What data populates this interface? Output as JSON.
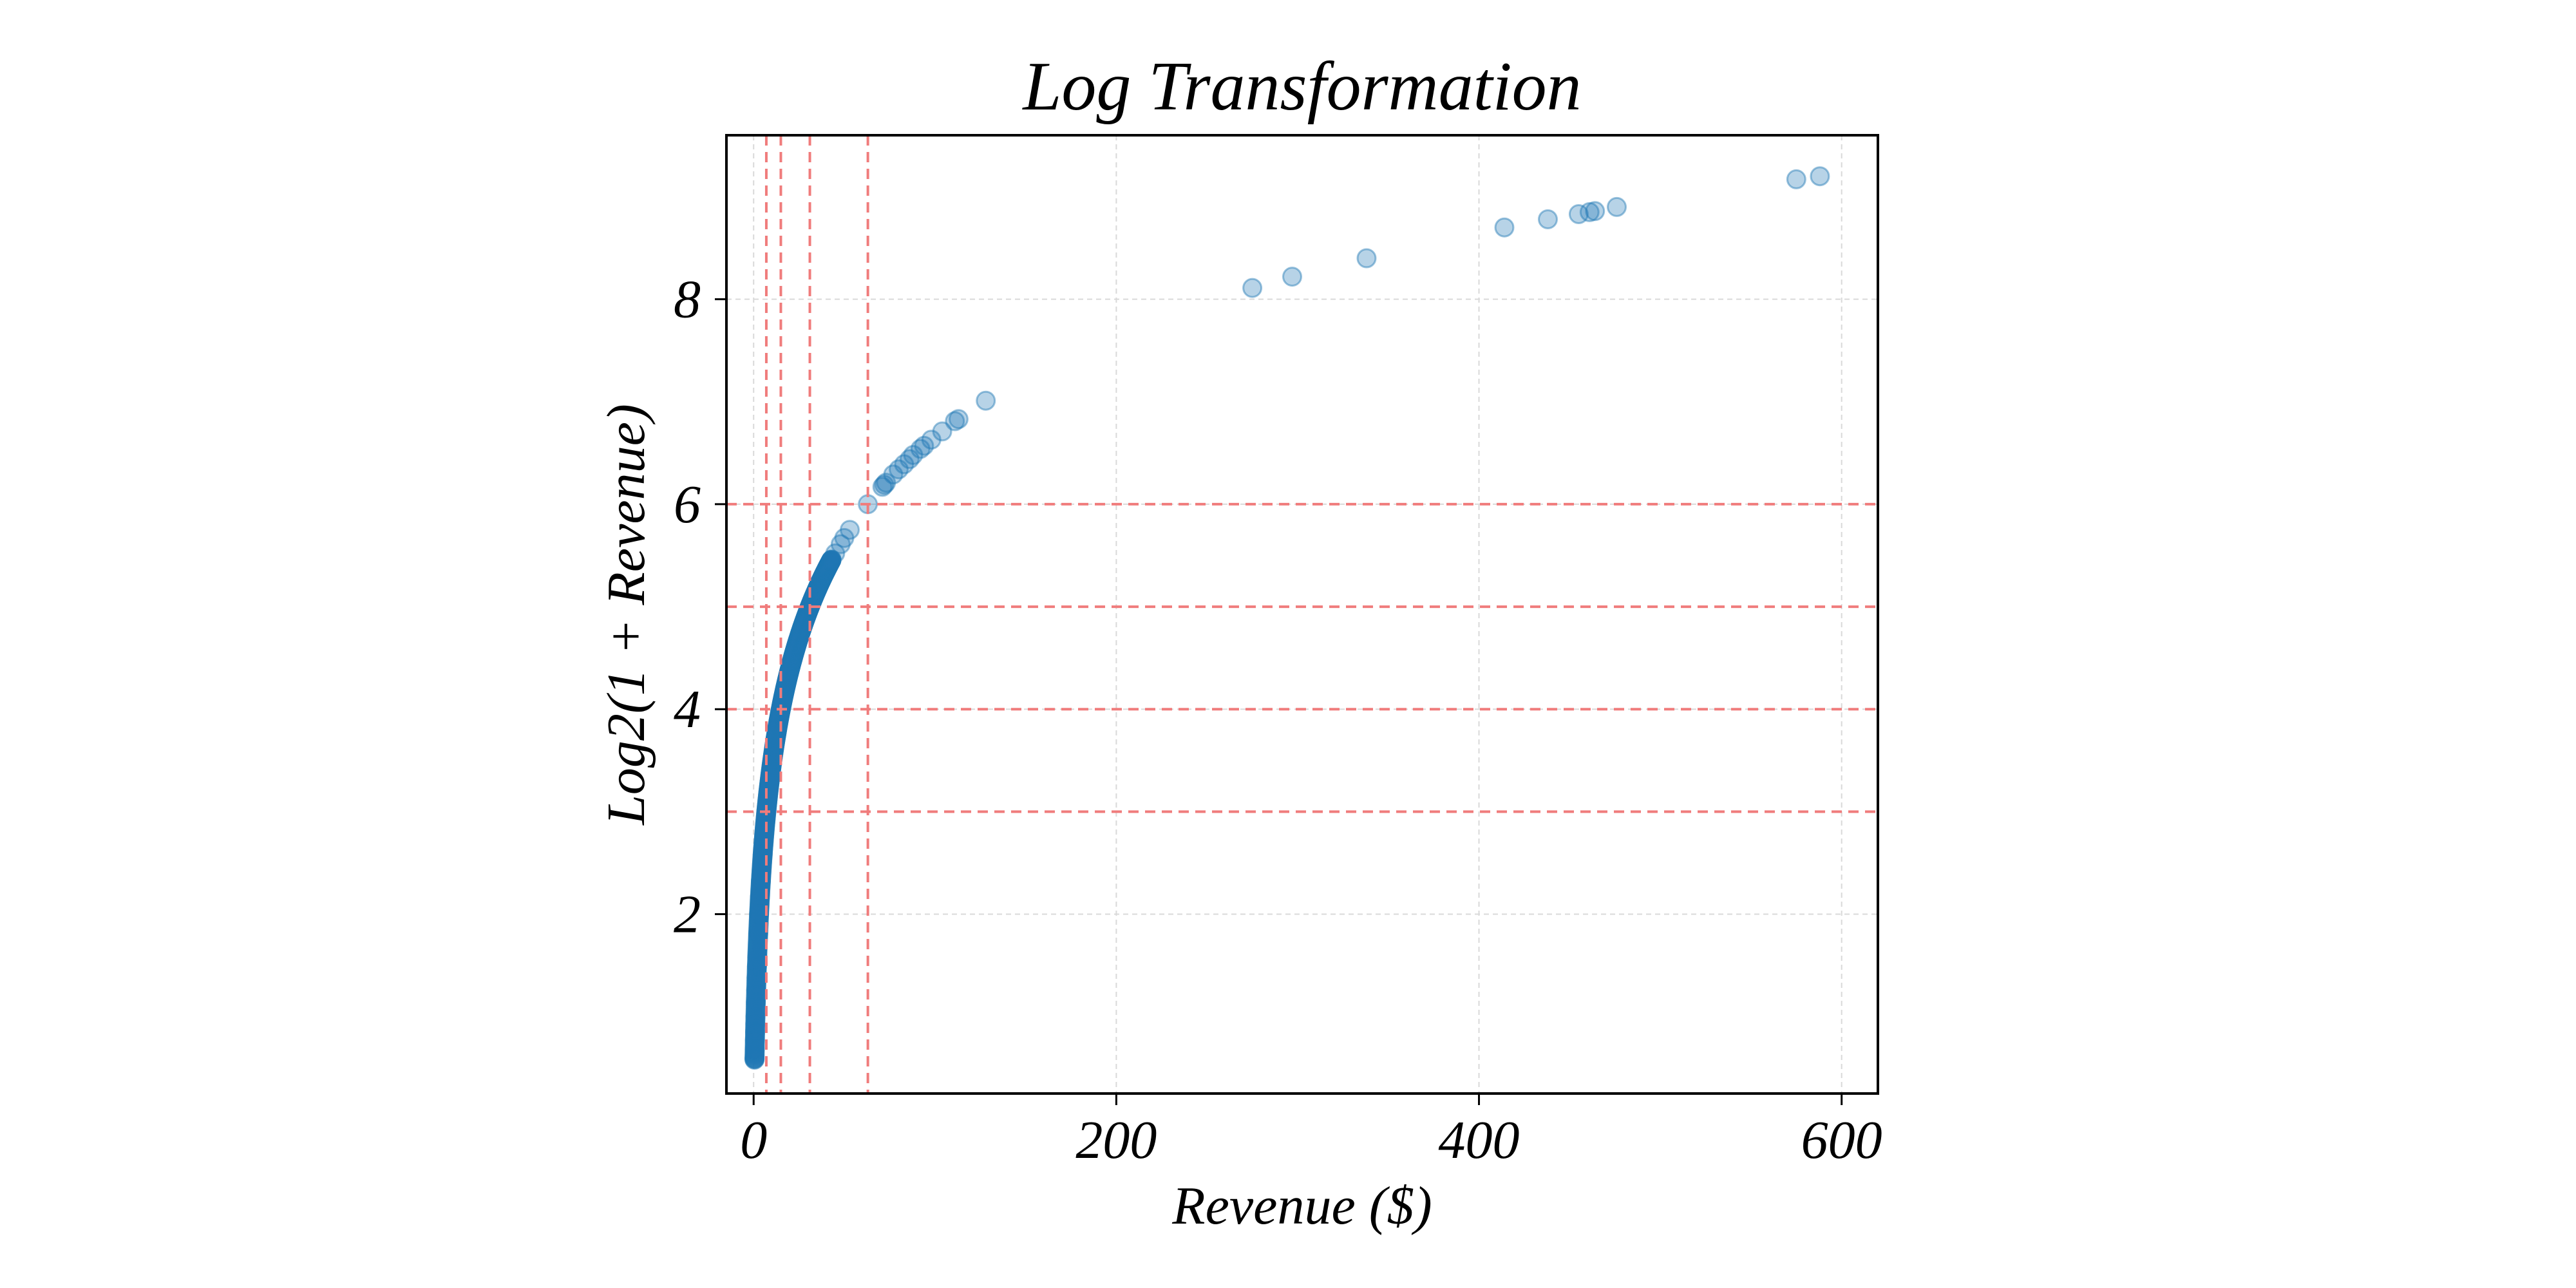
{
  "chart_data": {
    "type": "scatter",
    "title": "Log Transformation",
    "xlabel": "Revenue ($)",
    "ylabel": "Log2(1 + Revenue)",
    "xlim": [
      -15,
      620
    ],
    "ylim": [
      0.25,
      9.6
    ],
    "xticks": [
      0,
      200,
      400,
      600
    ],
    "yticks": [
      2,
      4,
      6,
      8
    ],
    "grid": true,
    "colors": {
      "points": "#1f77b4",
      "reference_lines": "#f07c7c",
      "grid": "#d9d9d9"
    },
    "reference_lines": {
      "vertical_x": [
        7,
        15,
        31,
        63
      ],
      "horizontal_y": [
        3,
        4,
        5,
        6
      ]
    },
    "y_function": "log2(1 + x)",
    "dense_curve": {
      "x_from": 0.5,
      "x_to": 43
    },
    "series": [
      {
        "x": [
          0.5,
          0.6,
          0.7,
          0.8,
          0.9,
          1.0,
          1.2,
          1.4,
          1.6,
          1.8,
          2.0,
          2.5,
          3.0,
          3.5,
          4.0,
          5.0,
          45,
          48,
          50,
          53,
          63,
          71,
          72,
          73,
          77,
          80,
          83,
          86,
          88,
          92,
          94,
          98,
          104,
          111,
          113,
          128,
          275,
          297,
          338,
          414,
          438,
          455,
          461,
          464,
          476,
          575,
          588
        ],
        "y": [
          0.58,
          0.68,
          0.77,
          0.85,
          0.93,
          1.0,
          1.14,
          1.26,
          1.38,
          1.49,
          1.58,
          1.81,
          2.0,
          2.17,
          2.32,
          2.58,
          5.52,
          5.61,
          5.67,
          5.75,
          6.0,
          6.17,
          6.19,
          6.21,
          6.29,
          6.34,
          6.39,
          6.44,
          6.48,
          6.54,
          6.57,
          6.63,
          6.71,
          6.81,
          6.83,
          7.01,
          8.11,
          8.22,
          8.4,
          8.7,
          8.78,
          8.83,
          8.85,
          8.86,
          8.9,
          9.17,
          9.2
        ]
      }
    ]
  }
}
